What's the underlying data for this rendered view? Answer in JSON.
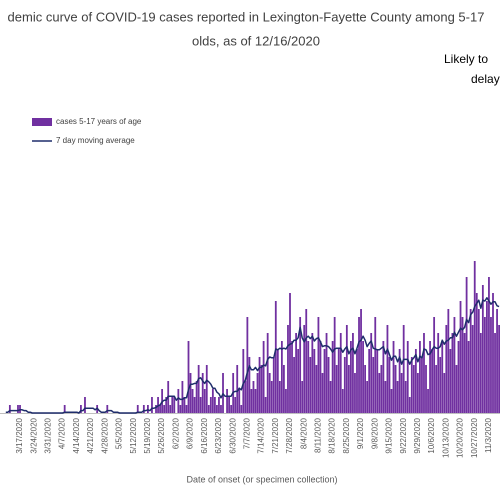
{
  "chart_data": {
    "type": "bar",
    "title_lines": [
      "demic curve of COVID-19 cases reported in Lexington-Fayette County among 5-17",
      "olds, as of 12/16/2020"
    ],
    "annotation_lines": [
      "Likely to",
      "delay"
    ],
    "x_label": "Date of onset (or specimen collection)",
    "categories": [
      null,
      null,
      null,
      null,
      null,
      null,
      null,
      "3/17/2020",
      null,
      null,
      null,
      null,
      null,
      null,
      "3/24/2020",
      null,
      null,
      null,
      null,
      null,
      null,
      "3/31/2020",
      null,
      null,
      null,
      null,
      null,
      null,
      "4/7/2020",
      null,
      null,
      null,
      null,
      null,
      null,
      "4/14/2020",
      null,
      null,
      null,
      null,
      null,
      null,
      "4/21/2020",
      null,
      null,
      null,
      null,
      null,
      null,
      "4/28/2020",
      null,
      null,
      null,
      null,
      null,
      null,
      "5/5/2020",
      null,
      null,
      null,
      null,
      null,
      null,
      "5/12/2020",
      null,
      null,
      null,
      null,
      null,
      null,
      "5/19/2020",
      null,
      null,
      null,
      null,
      null,
      null,
      "5/26/2020",
      null,
      null,
      null,
      null,
      null,
      null,
      "6/2/2020",
      null,
      null,
      null,
      null,
      null,
      null,
      "6/9/2020",
      null,
      null,
      null,
      null,
      null,
      null,
      "6/16/2020",
      null,
      null,
      null,
      null,
      null,
      null,
      "6/23/2020",
      null,
      null,
      null,
      null,
      null,
      null,
      "6/30/2020",
      null,
      null,
      null,
      null,
      null,
      null,
      "7/7/2020",
      null,
      null,
      null,
      null,
      null,
      null,
      "7/14/2020",
      null,
      null,
      null,
      null,
      null,
      null,
      "7/21/2020",
      null,
      null,
      null,
      null,
      null,
      null,
      "7/28/2020",
      null,
      null,
      null,
      null,
      null,
      null,
      "8/4/2020",
      null,
      null,
      null,
      null,
      null,
      null,
      "8/11/2020",
      null,
      null,
      null,
      null,
      null,
      null,
      "8/18/2020",
      null,
      null,
      null,
      null,
      null,
      null,
      "8/25/2020",
      null,
      null,
      null,
      null,
      null,
      null,
      "9/1/2020",
      null,
      null,
      null,
      null,
      null,
      null,
      "9/8/2020",
      null,
      null,
      null,
      null,
      null,
      null,
      "9/15/2020",
      null,
      null,
      null,
      null,
      null,
      null,
      "9/22/2020",
      null,
      null,
      null,
      null,
      null,
      null,
      "9/29/2020",
      null,
      null,
      null,
      null,
      null,
      null,
      "10/6/2020",
      null,
      null,
      null,
      null,
      null,
      null,
      "10/13/2020",
      null,
      null,
      null,
      null,
      null,
      null,
      "10/20/2020",
      null,
      null,
      null,
      null,
      null,
      null,
      "10/27/2020",
      null,
      null,
      null,
      null,
      null,
      null,
      "11/3/2020",
      null,
      null,
      null,
      null,
      null
    ],
    "series": [
      {
        "name": "cases 5-17 years of age",
        "type": "bar",
        "color": "#7030a0",
        "values": [
          0,
          0,
          1,
          0,
          0,
          0,
          1,
          1,
          0,
          0,
          0,
          0,
          0,
          0,
          0,
          0,
          0,
          0,
          0,
          0,
          0,
          0,
          0,
          0,
          0,
          0,
          0,
          0,
          0,
          1,
          0,
          0,
          0,
          0,
          0,
          0,
          0,
          1,
          0,
          2,
          0,
          0,
          0,
          0,
          0,
          1,
          0,
          0,
          0,
          0,
          1,
          0,
          0,
          0,
          0,
          0,
          0,
          0,
          0,
          0,
          0,
          0,
          0,
          0,
          0,
          1,
          0,
          0,
          1,
          0,
          1,
          0,
          2,
          0,
          1,
          2,
          1,
          3,
          1,
          2,
          4,
          1,
          2,
          2,
          0,
          3,
          1,
          4,
          2,
          1,
          9,
          5,
          3,
          2,
          4,
          6,
          2,
          5,
          3,
          6,
          1,
          2,
          3,
          2,
          1,
          2,
          1,
          5,
          0,
          3,
          2,
          1,
          5,
          2,
          6,
          3,
          1,
          8,
          4,
          12,
          7,
          3,
          4,
          3,
          5,
          7,
          6,
          9,
          2,
          10,
          5,
          4,
          7,
          14,
          8,
          4,
          9,
          6,
          3,
          11,
          15,
          9,
          7,
          10,
          8,
          12,
          4,
          11,
          13,
          9,
          7,
          10,
          8,
          6,
          12,
          9,
          5,
          8,
          10,
          7,
          4,
          9,
          12,
          6,
          8,
          10,
          3,
          7,
          11,
          6,
          9,
          10,
          5,
          8,
          12,
          13,
          9,
          6,
          4,
          8,
          10,
          7,
          12,
          8,
          5,
          6,
          9,
          4,
          11,
          7,
          3,
          9,
          6,
          4,
          8,
          5,
          11,
          4,
          9,
          2,
          7,
          6,
          8,
          5,
          9,
          7,
          10,
          6,
          3,
          9,
          8,
          12,
          6,
          10,
          7,
          9,
          5,
          11,
          13,
          8,
          10,
          12,
          6,
          9,
          14,
          12,
          10,
          17,
          9,
          13,
          11,
          19,
          15,
          13,
          10,
          16,
          12,
          14,
          17,
          12,
          15,
          10,
          13,
          11
        ]
      },
      {
        "name": "7 day moving average",
        "type": "line",
        "color": "#1f2d6b",
        "values": [
          0.1,
          0.1,
          0.3,
          0.3,
          0.3,
          0.3,
          0.3,
          0.4,
          0.4,
          0.3,
          0.3,
          0.1,
          0.1,
          0,
          0,
          0,
          0,
          0,
          0,
          0,
          0,
          0,
          0,
          0,
          0,
          0,
          0,
          0,
          0,
          0.1,
          0.1,
          0.1,
          0.1,
          0.1,
          0.1,
          0.1,
          0,
          0.3,
          0.3,
          0.6,
          0.6,
          0.6,
          0.6,
          0.6,
          0.4,
          0.6,
          0.3,
          0.1,
          0.1,
          0.1,
          0.3,
          0.3,
          0.3,
          0.1,
          0.1,
          0.1,
          0,
          0,
          0,
          0,
          0,
          0,
          0,
          0,
          0,
          0.1,
          0.1,
          0.1,
          0.3,
          0.3,
          0.4,
          0.3,
          0.6,
          0.6,
          0.7,
          0.9,
          1,
          1.4,
          1.6,
          1.6,
          2.1,
          2.1,
          2.1,
          2.1,
          1.6,
          1.9,
          1.7,
          1.7,
          1.9,
          1.9,
          2.9,
          3.6,
          3.6,
          3.7,
          3.7,
          4.3,
          4.4,
          4,
          3.7,
          4.1,
          3.9,
          3.6,
          3.1,
          3.1,
          2.6,
          2.4,
          1.9,
          2.4,
          2.1,
          2.1,
          2.1,
          2.1,
          2.6,
          2.7,
          2.7,
          3.1,
          2.9,
          3.7,
          4.1,
          5.1,
          5.9,
          5.4,
          5.4,
          5.7,
          5.3,
          5.7,
          5.7,
          6,
          5.9,
          6.7,
          7,
          6.9,
          6.9,
          8,
          7.9,
          8.1,
          8,
          8.1,
          8,
          8.4,
          8.6,
          8.7,
          9.1,
          9.1,
          9.4,
          10.7,
          9.4,
          8.9,
          9.4,
          9.6,
          9.3,
          9.6,
          9,
          9.3,
          9.4,
          8.9,
          8.3,
          8.4,
          8.4,
          8.3,
          8,
          7.6,
          8,
          8.1,
          8.1,
          8.1,
          7.6,
          8,
          8.3,
          7.4,
          7.9,
          8.1,
          7.4,
          8.1,
          8.9,
          9.1,
          9.6,
          9.1,
          8.3,
          8.7,
          9,
          8.1,
          8,
          7.9,
          7.9,
          8.1,
          8.3,
          7.4,
          8,
          7.3,
          6.6,
          7.1,
          7.1,
          6.4,
          7,
          6.1,
          6.7,
          6.7,
          6.7,
          6.1,
          6.6,
          6.9,
          7.3,
          6.4,
          7.1,
          6.9,
          8,
          7.9,
          7.3,
          7.4,
          7.9,
          8.3,
          8.1,
          8.1,
          8.3,
          9.1,
          8.6,
          9,
          9.1,
          9.4,
          9.4,
          10.1,
          9.6,
          10.1,
          10.6,
          10.4,
          10.7,
          11.7,
          11.3,
          12.3,
          12.6,
          13.3,
          13.7,
          14.1,
          13.1,
          14.1,
          14,
          14.4,
          14,
          13.6,
          13.9,
          13.9,
          13.4,
          13.3
        ]
      }
    ]
  }
}
